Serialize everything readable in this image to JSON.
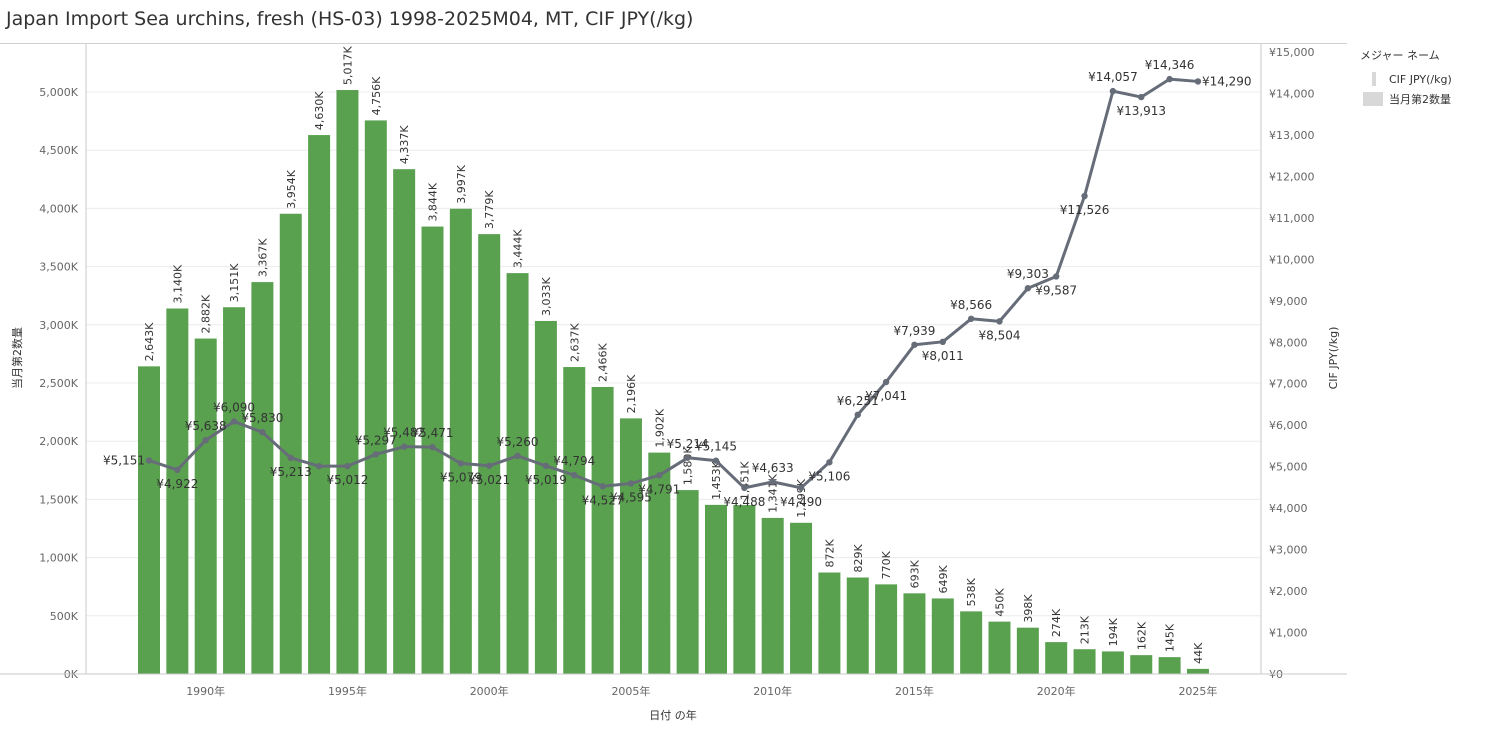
{
  "title": "Japan Import Sea urchins, fresh (HS-03) 1998-2025M04, MT, CIF JPY(/kg)",
  "legend": {
    "title": "メジャー ネーム",
    "items": [
      {
        "label": "CIF JPY(/kg)",
        "kind": "line"
      },
      {
        "label": "当月第2数量",
        "kind": "bar"
      }
    ]
  },
  "colors": {
    "bar": "#59a14f",
    "line": "#666c78",
    "grid": "#ececec",
    "axis": "#c8c8c8",
    "text": "#333333",
    "tick": "#666666"
  },
  "chart_data": {
    "type": "bar+line",
    "xlabel": "日付 の年",
    "ylabel_left": "当月第2数量",
    "ylabel_right": "CIF JPY(/kg)",
    "ylim_left": [
      0,
      5400000
    ],
    "ylim_right": [
      0,
      15000
    ],
    "x_ticks": [
      {
        "year": 1990,
        "label": "1990年"
      },
      {
        "year": 1995,
        "label": "1995年"
      },
      {
        "year": 2000,
        "label": "2000年"
      },
      {
        "year": 2005,
        "label": "2005年"
      },
      {
        "year": 2010,
        "label": "2010年"
      },
      {
        "year": 2015,
        "label": "2015年"
      },
      {
        "year": 2020,
        "label": "2020年"
      },
      {
        "year": 2025,
        "label": "2025年"
      }
    ],
    "y_left_ticks": [
      {
        "value": 0,
        "label": "0K"
      },
      {
        "value": 500000,
        "label": "500K"
      },
      {
        "value": 1000000,
        "label": "1,000K"
      },
      {
        "value": 1500000,
        "label": "1,500K"
      },
      {
        "value": 2000000,
        "label": "2,000K"
      },
      {
        "value": 2500000,
        "label": "2,500K"
      },
      {
        "value": 3000000,
        "label": "3,000K"
      },
      {
        "value": 3500000,
        "label": "3,500K"
      },
      {
        "value": 4000000,
        "label": "4,000K"
      },
      {
        "value": 4500000,
        "label": "4,500K"
      },
      {
        "value": 5000000,
        "label": "5,000K"
      }
    ],
    "y_right_ticks": [
      {
        "value": 0,
        "label": "¥0"
      },
      {
        "value": 1000,
        "label": "¥1,000"
      },
      {
        "value": 2000,
        "label": "¥2,000"
      },
      {
        "value": 3000,
        "label": "¥3,000"
      },
      {
        "value": 4000,
        "label": "¥4,000"
      },
      {
        "value": 5000,
        "label": "¥5,000"
      },
      {
        "value": 6000,
        "label": "¥6,000"
      },
      {
        "value": 7000,
        "label": "¥7,000"
      },
      {
        "value": 8000,
        "label": "¥8,000"
      },
      {
        "value": 9000,
        "label": "¥9,000"
      },
      {
        "value": 10000,
        "label": "¥10,000"
      },
      {
        "value": 11000,
        "label": "¥11,000"
      },
      {
        "value": 12000,
        "label": "¥12,000"
      },
      {
        "value": 13000,
        "label": "¥13,000"
      },
      {
        "value": 14000,
        "label": "¥14,000"
      },
      {
        "value": 15000,
        "label": "¥15,000"
      }
    ],
    "years": [
      1988,
      1989,
      1990,
      1991,
      1992,
      1993,
      1994,
      1995,
      1996,
      1997,
      1998,
      1999,
      2000,
      2001,
      2002,
      2003,
      2004,
      2005,
      2006,
      2007,
      2008,
      2009,
      2010,
      2011,
      2012,
      2013,
      2014,
      2015,
      2016,
      2017,
      2018,
      2019,
      2020,
      2021,
      2022,
      2023,
      2024,
      2025
    ],
    "series": [
      {
        "name": "当月第2数量",
        "kind": "bar",
        "values": [
          2643000,
          3140000,
          2882000,
          3151000,
          3367000,
          3954000,
          4630000,
          5017000,
          4756000,
          4337000,
          3844000,
          3997000,
          3779000,
          3444000,
          3033000,
          2637000,
          2466000,
          2196000,
          1902000,
          1580000,
          1453000,
          1451000,
          1341000,
          1299000,
          872000,
          829000,
          770000,
          693000,
          649000,
          538000,
          450000,
          398000,
          274000,
          213000,
          194000,
          162000,
          145000,
          44000
        ],
        "labels": [
          "2,643K",
          "3,140K",
          "2,882K",
          "3,151K",
          "3,367K",
          "3,954K",
          "4,630K",
          "5,017K",
          "4,756K",
          "4,337K",
          "3,844K",
          "3,997K",
          "3,779K",
          "3,444K",
          "3,033K",
          "2,637K",
          "2,466K",
          "2,196K",
          "1,902K",
          "1,580K",
          "1,453K",
          "1,451K",
          "1,341K",
          "1,299K",
          "872K",
          "829K",
          "770K",
          "693K",
          "649K",
          "538K",
          "450K",
          "398K",
          "274K",
          "213K",
          "194K",
          "162K",
          "145K",
          "44K"
        ]
      },
      {
        "name": "CIF JPY(/kg)",
        "kind": "line",
        "values": [
          5151,
          4922,
          5638,
          6090,
          5830,
          5213,
          5012,
          5012,
          5297,
          5482,
          5471,
          5079,
          5021,
          5260,
          5019,
          4794,
          4527,
          4595,
          4791,
          5214,
          5145,
          4488,
          4633,
          4490,
          5106,
          6251,
          7041,
          7939,
          8011,
          8566,
          8504,
          9303,
          9587,
          11526,
          14057,
          13913,
          14346,
          14290
        ],
        "labels": [
          "¥5,151",
          "¥4,922",
          "¥5,638",
          "¥6,090",
          "¥5,830",
          "¥5,213",
          "",
          "¥5,012",
          "¥5,297",
          "¥5,482",
          "¥5,471",
          "¥5,079",
          "¥5,021",
          "¥5,260",
          "¥5,019",
          "¥4,794",
          "¥4,527",
          "¥4,595",
          "¥4,791",
          "¥5,214",
          "¥5,145",
          "¥4,488",
          "¥4,633",
          "¥4,490",
          "¥5,106",
          "¥6,251",
          "¥7,041",
          "¥7,939",
          "¥8,011",
          "¥8,566",
          "¥8,504",
          "¥9,303",
          "¥9,587",
          "¥11,526",
          "¥14,057",
          "¥13,913",
          "¥14,346",
          "¥14,290"
        ]
      }
    ]
  }
}
